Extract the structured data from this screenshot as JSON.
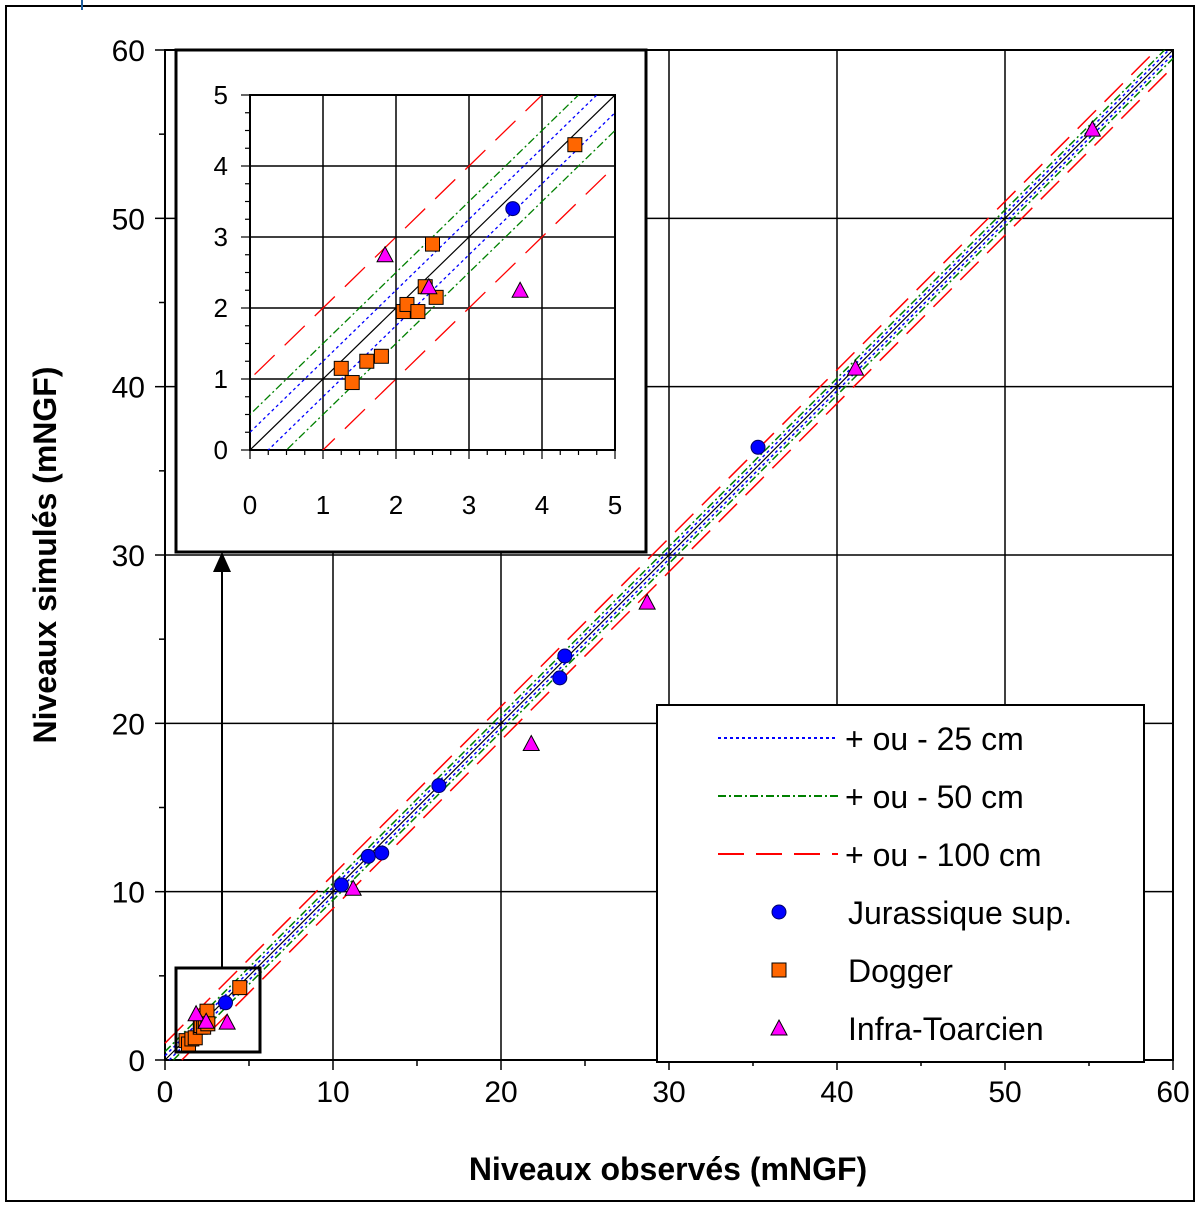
{
  "chart_data": [
    {
      "type": "scatter",
      "xlabel": "Niveaux observés (mNGF)",
      "ylabel": "Niveaux simulés (mNGF)",
      "xlim": [
        0,
        60
      ],
      "ylim": [
        0,
        60
      ],
      "xticks": [
        "0",
        "10",
        "20",
        "30",
        "40",
        "50",
        "60"
      ],
      "yticks": [
        "0",
        "10",
        "20",
        "30",
        "40",
        "50",
        "60"
      ],
      "grid": true,
      "legend_position": "bottom-right",
      "reference_lines": [
        {
          "label": "+ ou - 25 cm",
          "offset": 0.25,
          "color": "#0000ff",
          "style": "dotted"
        },
        {
          "label": "+ ou - 50 cm",
          "offset": 0.5,
          "color": "#008000",
          "style": "dash-dot"
        },
        {
          "label": "+ ou - 100 cm",
          "offset": 1.0,
          "color": "#ff0000",
          "style": "long-dash"
        }
      ],
      "series": [
        {
          "name": "Jurassique sup.",
          "marker": "circle",
          "color": "#0000ff",
          "points": [
            [
              3.6,
              3.4
            ],
            [
              10.5,
              10.4
            ],
            [
              12.1,
              12.1
            ],
            [
              12.9,
              12.3
            ],
            [
              16.3,
              16.3
            ],
            [
              23.5,
              22.7
            ],
            [
              23.8,
              24.0
            ],
            [
              35.3,
              36.4
            ]
          ]
        },
        {
          "name": "Dogger",
          "marker": "square",
          "color": "#ff6600",
          "points": [
            [
              1.25,
              1.15
            ],
            [
              1.4,
              0.95
            ],
            [
              1.6,
              1.25
            ],
            [
              1.8,
              1.32
            ],
            [
              2.1,
              1.95
            ],
            [
              2.15,
              2.05
            ],
            [
              2.3,
              1.95
            ],
            [
              2.4,
              2.3
            ],
            [
              2.5,
              2.9
            ],
            [
              2.55,
              2.15
            ],
            [
              4.45,
              4.3
            ]
          ]
        },
        {
          "name": "Infra-Toarcien",
          "marker": "triangle",
          "color": "#ff00ff",
          "points": [
            [
              1.85,
              2.75
            ],
            [
              2.45,
              2.3
            ],
            [
              3.7,
              2.25
            ],
            [
              11.2,
              10.2
            ],
            [
              21.8,
              18.8
            ],
            [
              28.7,
              27.2
            ],
            [
              41.1,
              41.1
            ],
            [
              55.2,
              55.3
            ]
          ]
        }
      ]
    },
    {
      "type": "scatter",
      "inset": true,
      "xlim": [
        0,
        5
      ],
      "ylim": [
        0,
        5
      ],
      "xticks": [
        "0",
        "1",
        "2",
        "3",
        "4",
        "5"
      ],
      "yticks": [
        "0",
        "1",
        "2",
        "3",
        "4",
        "5"
      ],
      "grid": true
    }
  ]
}
